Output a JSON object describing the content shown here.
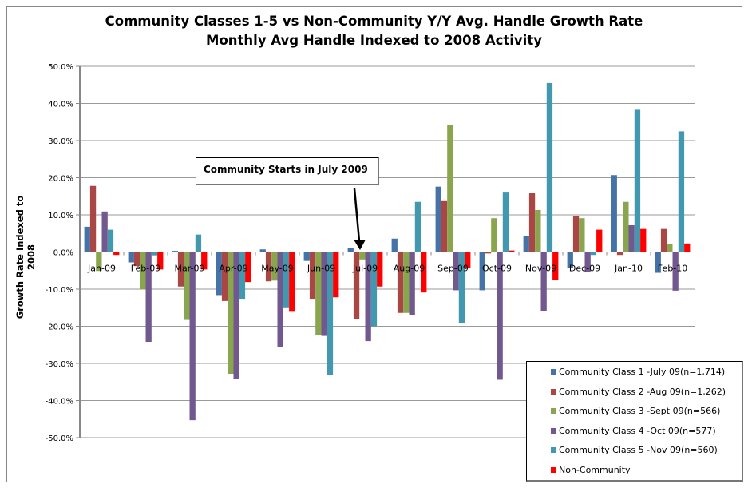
{
  "chart_data": {
    "type": "bar",
    "title": "Community Classes 1-5 vs Non-Community  Y/Y Avg. Handle Growth Rate",
    "subtitle": "Monthly Avg Handle Indexed to 2008 Activity",
    "xlabel": "",
    "ylabel": "Growth Rate Indexed to 2008",
    "ylim": [
      -50,
      50
    ],
    "yticks": [
      "50.0%",
      "40.0%",
      "30.0%",
      "20.0%",
      "10.0%",
      "0.0%",
      "-10.0%",
      "-20.0%",
      "-30.0%",
      "-40.0%",
      "-50.0%"
    ],
    "grid": true,
    "legend_position": "bottom-right",
    "categories": [
      "Jan-09",
      "Feb-09",
      "Mar-09",
      "Apr-09",
      "May-09",
      "Jun-09",
      "Jul-09",
      "Aug-09",
      "Sep-09",
      "Oct-09",
      "Nov-09",
      "Dec-09",
      "Jan-10",
      "Feb-10"
    ],
    "series": [
      {
        "name": "Community Class 1 -July 09(n=1,714)",
        "color": "#4572A7",
        "values": [
          6.8,
          -2.8,
          0.3,
          -11.6,
          0.7,
          -2.4,
          1.1,
          3.6,
          17.6,
          -10.3,
          4.2,
          -4.2,
          20.7,
          -5.6
        ]
      },
      {
        "name": "Community Class 2 -Aug 09(n=1,262)",
        "color": "#AA4643",
        "values": [
          17.8,
          -3.8,
          -9.3,
          -13.2,
          -7.9,
          -12.6,
          -18.0,
          -16.4,
          13.7,
          -0.4,
          15.8,
          9.6,
          -0.8,
          6.2
        ]
      },
      {
        "name": "Community Class 3 -Sept 09(n=566)",
        "color": "#89A54E",
        "values": [
          -5.1,
          -10.1,
          -18.3,
          -32.8,
          -7.7,
          -22.4,
          -2.0,
          -16.4,
          34.2,
          9.1,
          11.3,
          9.1,
          13.5,
          2.1
        ]
      },
      {
        "name": "Community Class 4 -Oct 09(n=577)",
        "color": "#71588F",
        "values": [
          10.9,
          -24.2,
          -45.3,
          -34.2,
          -25.5,
          -22.6,
          -24.0,
          -16.9,
          -10.3,
          -34.4,
          -16.0,
          -5.4,
          7.2,
          -10.4
        ]
      },
      {
        "name": "Community Class 5 -Nov 09(n=560)",
        "color": "#4198AF",
        "values": [
          6.0,
          -0.9,
          4.7,
          -12.6,
          -14.9,
          -33.2,
          -20.0,
          13.5,
          -19.1,
          16.0,
          45.5,
          -0.8,
          38.3,
          32.5
        ]
      },
      {
        "name": "Non-Community",
        "color": "#FF0000",
        "values": [
          -0.8,
          -4.7,
          -4.7,
          -8.1,
          -16.1,
          -12.2,
          -9.3,
          -10.9,
          -4.2,
          0.4,
          -7.6,
          6.0,
          6.2,
          2.3
        ]
      }
    ],
    "annotations": [
      {
        "text": "Community Starts in July 2009",
        "points_to": "Jul-09"
      }
    ]
  }
}
